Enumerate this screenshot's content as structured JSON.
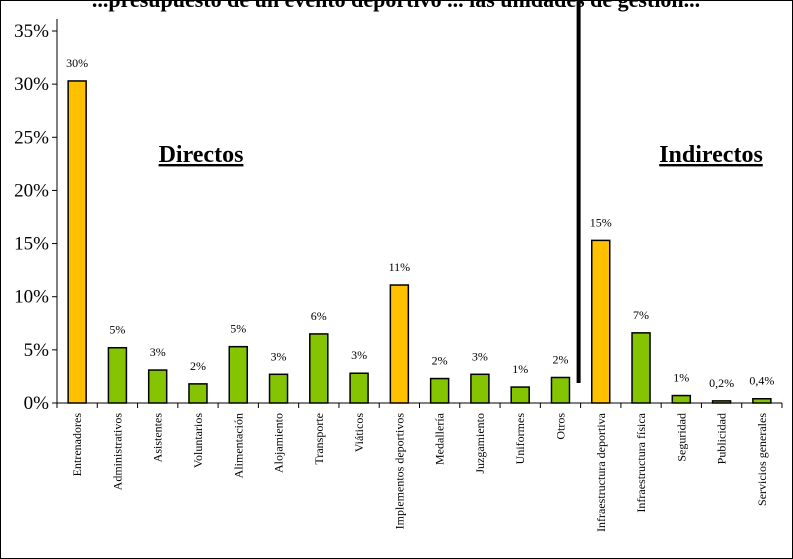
{
  "chart_data": {
    "type": "bar",
    "title": "...presupuesto de un evento deportivo ... las unidades de gestión...",
    "categories": [
      "Entrenadores",
      "Administrativos",
      "Asistentes",
      "Voluntarios",
      "Alimentación",
      "Alojamiento",
      "Transporte",
      "Viáticos",
      "Implementos deportivos",
      "Medallería",
      "Juzgamiento",
      "Uniformes",
      "Otros",
      "Infraestructura deportiva",
      "Infraestructura física",
      "Seguridad",
      "Publicidad",
      "Servicios generales"
    ],
    "values": [
      30.3,
      5.2,
      3.1,
      1.8,
      5.3,
      2.7,
      6.5,
      2.8,
      11.1,
      2.3,
      2.7,
      1.5,
      2.4,
      15.3,
      6.6,
      0.7,
      0.2,
      0.4
    ],
    "data_labels": [
      "30%",
      "5%",
      "3%",
      "2%",
      "5%",
      "3%",
      "6%",
      "3%",
      "11%",
      "2%",
      "3%",
      "1%",
      "2%",
      "15%",
      "7%",
      "1%",
      "0,2%",
      "0,4%"
    ],
    "bar_colors": [
      "#FFC000",
      "#84C400",
      "#84C400",
      "#84C400",
      "#84C400",
      "#84C400",
      "#84C400",
      "#84C400",
      "#FFC000",
      "#84C400",
      "#84C400",
      "#84C400",
      "#84C400",
      "#FFC000",
      "#84C400",
      "#84C400",
      "#84C400",
      "#84C400"
    ],
    "ylim": [
      0,
      35
    ],
    "yticks": [
      0,
      5,
      10,
      15,
      20,
      25,
      30,
      35
    ],
    "ytick_labels": [
      "0%",
      "5%",
      "10%",
      "15%",
      "20%",
      "25%",
      "30%",
      "35%"
    ],
    "group_labels": [
      {
        "text": "Directos",
        "after_category": 0
      },
      {
        "text": "Indirectos",
        "after_category": 13
      }
    ],
    "divider_after_category": 12,
    "grid": false,
    "legend": "none"
  }
}
